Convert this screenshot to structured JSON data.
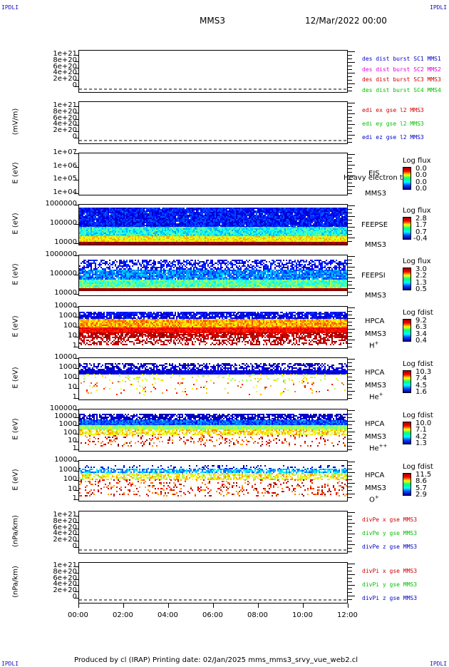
{
  "header": {
    "corner_left": "IPDLI",
    "corner_right": "IPDLI",
    "title": "MMS3",
    "date": "12/Mar/2022 00:00"
  },
  "footer": {
    "text": "Produced by cl (IRAP)   Printing date: 02/Jan/2025   mms_mms3_srvy_vue_web2.cl",
    "corner_left": "IPDLI",
    "corner_right": "IPDLI"
  },
  "colors": {
    "blue": "#0000c8",
    "magenta": "#e000e0",
    "red": "#d00000",
    "green": "#00c000"
  },
  "chart_data": [
    {
      "type": "line",
      "ylabel": "",
      "yticks": [
        "1e+21",
        "8e+20",
        "6e+20",
        "4e+20",
        "2e+20",
        "0"
      ],
      "series": [
        {
          "name": "des dist burst SC1 MMS1",
          "color": "#0000c8"
        },
        {
          "name": "des dist burst SC2 MMS2",
          "color": "#e000e0"
        },
        {
          "name": "des dist burst SC3 MMS3",
          "color": "#d00000"
        },
        {
          "name": "des dist burst SC4 MMS4",
          "color": "#00c000"
        }
      ]
    },
    {
      "type": "line",
      "ylabel": "(mV/m)",
      "yticks": [
        "1e+21",
        "8e+20",
        "6e+20",
        "4e+20",
        "2e+20",
        "0"
      ],
      "series": [
        {
          "name": "edi ex gse l2 MMS3",
          "color": "#d00000"
        },
        {
          "name": "edi ey gse l2 MMS3",
          "color": "#00c000"
        },
        {
          "name": "edi ez gse l2 MMS3",
          "color": "#0000c8"
        }
      ]
    },
    {
      "type": "heatmap",
      "ylabel": "E (eV)",
      "yticks": [
        "1e+07",
        "1e+06",
        "1e+05",
        "1e+04"
      ],
      "side": [
        "EIS",
        "MMS3"
      ],
      "side_overlay": "Heavy electron to",
      "cbar_title": "Log flux",
      "cbar_values": [
        "0.0",
        "0.0",
        "0.0",
        "0.0"
      ]
    },
    {
      "type": "heatmap",
      "ylabel": "E (eV)",
      "yticks": [
        "1000000",
        "100000",
        "10000"
      ],
      "side": [
        "FEEPSE",
        "MMS3"
      ],
      "cbar_title": "Log flux",
      "cbar_values": [
        "2.8",
        "1.7",
        "0.7",
        "-0.4"
      ]
    },
    {
      "type": "heatmap",
      "ylabel": "E (eV)",
      "yticks": [
        "1000000",
        "100000",
        "10000"
      ],
      "side": [
        "FEEPSI",
        "MMS3"
      ],
      "cbar_title": "Log flux",
      "cbar_values": [
        "3.0",
        "2.2",
        "1.3",
        "0.5"
      ]
    },
    {
      "type": "heatmap",
      "ylabel": "E (eV)",
      "yticks": [
        "10000",
        "1000",
        "100",
        "10",
        "1"
      ],
      "side": [
        "HPCA",
        "MMS3",
        "H",
        "+"
      ],
      "cbar_title": "Log fdist",
      "cbar_values": [
        "9.2",
        "6.3",
        "3.4",
        "0.4"
      ]
    },
    {
      "type": "heatmap",
      "ylabel": "E (eV)",
      "yticks": [
        "10000",
        "1000",
        "100",
        "10",
        "1"
      ],
      "side": [
        "HPCA",
        "MMS3",
        "He",
        "+"
      ],
      "cbar_title": "Log fdist",
      "cbar_values": [
        "10.3",
        "7.4",
        "4.5",
        "1.6"
      ]
    },
    {
      "type": "heatmap",
      "ylabel": "E (eV)",
      "yticks": [
        "100000",
        "10000",
        "1000",
        "100",
        "10",
        "1"
      ],
      "side": [
        "HPCA",
        "MMS3",
        "He",
        "++"
      ],
      "cbar_title": "Log fdist",
      "cbar_values": [
        "10.0",
        "7.1",
        "4.2",
        "1.3"
      ]
    },
    {
      "type": "heatmap",
      "ylabel": "E (eV)",
      "yticks": [
        "10000",
        "1000",
        "100",
        "10",
        "1"
      ],
      "side": [
        "HPCA",
        "MMS3",
        "O",
        "+"
      ],
      "cbar_title": "Log fdist",
      "cbar_values": [
        "11.5",
        "8.6",
        "5.7",
        "2.9"
      ]
    },
    {
      "type": "line",
      "ylabel": "(nPa/km)",
      "yticks": [
        "1e+21",
        "8e+20",
        "6e+20",
        "4e+20",
        "2e+20",
        "0"
      ],
      "series": [
        {
          "name": "divPe x gse MMS3",
          "color": "#d00000"
        },
        {
          "name": "divPe y gse MMS3",
          "color": "#00c000"
        },
        {
          "name": "divPe z gse MMS3",
          "color": "#0000c8"
        }
      ]
    },
    {
      "type": "line",
      "ylabel": "(nPa/km)",
      "yticks": [
        "1e+21",
        "8e+20",
        "6e+20",
        "4e+20",
        "2e+20",
        "0"
      ],
      "series": [
        {
          "name": "divPi x gse MMS3",
          "color": "#d00000"
        },
        {
          "name": "divPi y gse MMS3",
          "color": "#00c000"
        },
        {
          "name": "divPi z gse MMS3",
          "color": "#0000c8"
        }
      ]
    }
  ],
  "xaxis": {
    "ticks": [
      "00:00",
      "02:00",
      "04:00",
      "06:00",
      "08:00",
      "10:00",
      "12:00"
    ]
  }
}
